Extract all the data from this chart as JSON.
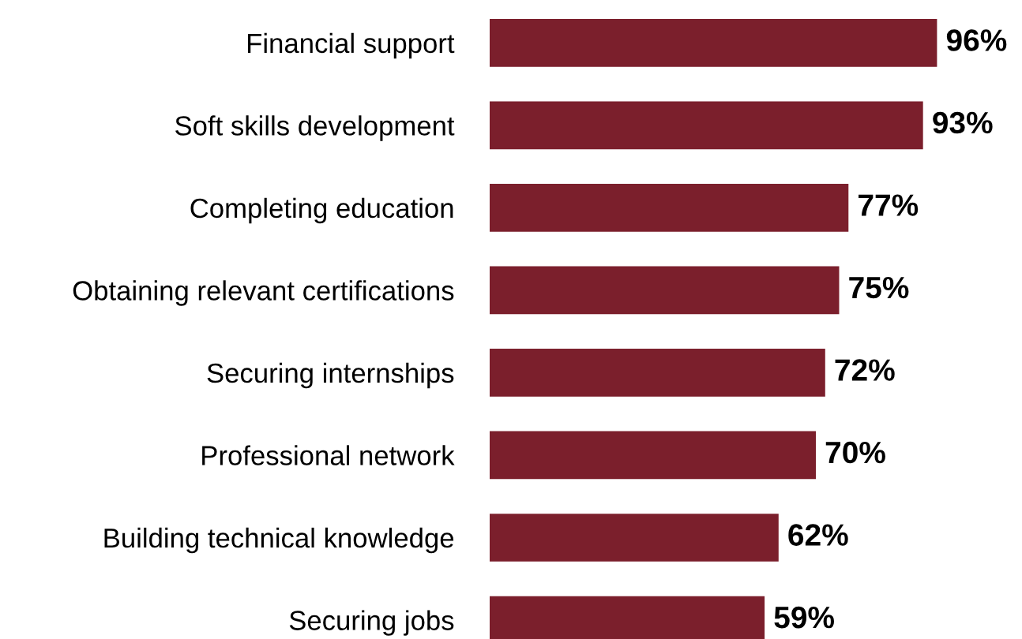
{
  "chart_data": {
    "type": "bar",
    "orientation": "horizontal",
    "categories": [
      "Financial support",
      "Soft skills development",
      "Completing education",
      "Obtaining relevant certifications",
      "Securing internships",
      "Professional network",
      "Building technical knowledge",
      "Securing jobs"
    ],
    "values": [
      96,
      93,
      77,
      75,
      72,
      70,
      62,
      59
    ],
    "value_labels": [
      "96%",
      "93%",
      "77%",
      "75%",
      "72%",
      "70%",
      "62%",
      "59%"
    ],
    "color": "#7b1f2c",
    "grid": false,
    "legend": false
  }
}
